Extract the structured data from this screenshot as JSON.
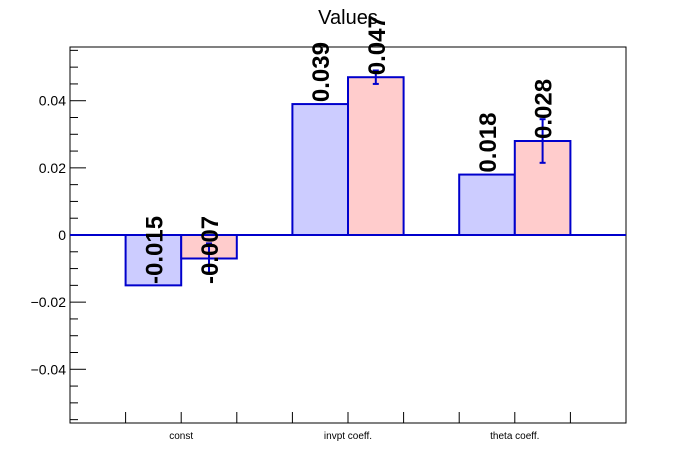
{
  "chart_data": {
    "type": "bar",
    "title": "Values",
    "xlabel": "",
    "ylabel": "",
    "categories": [
      "const",
      "invpt coeff.",
      "theta coeff."
    ],
    "ylim": [
      -0.056,
      0.056
    ],
    "yticks": [
      -0.04,
      -0.02,
      0,
      0.02,
      0.04
    ],
    "ytick_labels": [
      "−0.04",
      "−0.02",
      "0",
      "0.02",
      "0.04"
    ],
    "grid": false,
    "legend": "none",
    "series": [
      {
        "color": "#ccccff",
        "edge_color": "#0000cc",
        "values": [
          -0.015,
          0.039,
          0.018
        ],
        "labels": [
          "-0.015",
          "0.039",
          "0.018"
        ],
        "errors": [
          0,
          0,
          0
        ]
      },
      {
        "color": "#ffcccc",
        "edge_color": "#0000cc",
        "values": [
          -0.007,
          0.047,
          0.028
        ],
        "labels": [
          "-0.007",
          "0.047",
          "0.028"
        ],
        "errors": [
          0.0045,
          0.002,
          0.0065
        ]
      }
    ]
  }
}
